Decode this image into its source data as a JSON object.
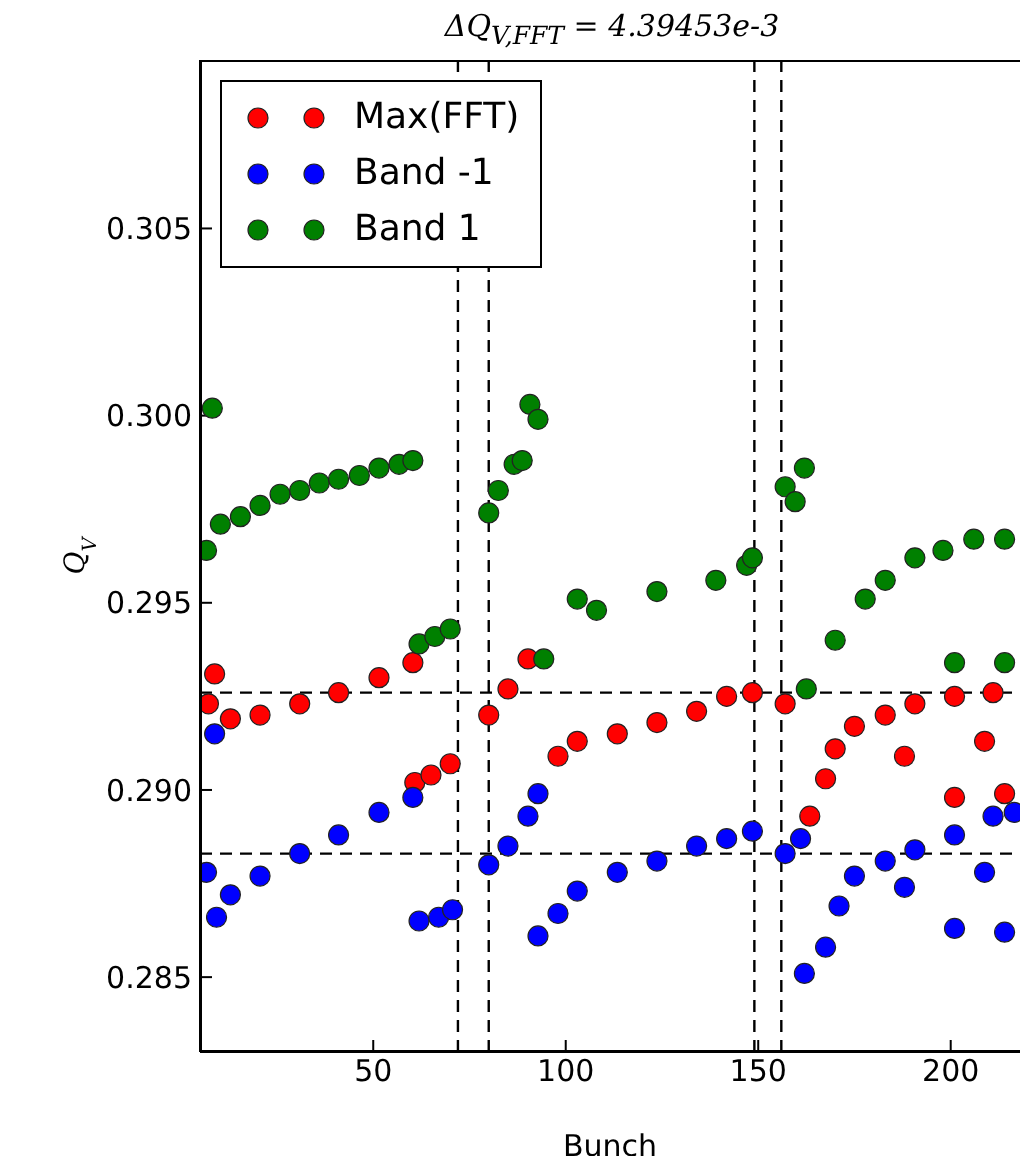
{
  "chart_data": {
    "type": "scatter",
    "title": "ΔQ$_{V,FFT}$ = 4.39453e-3",
    "xlabel": "Bunch",
    "ylabel": "Q$_{V}$",
    "xlim": [
      5,
      218
    ],
    "xticks": [
      50,
      100,
      150,
      200
    ],
    "ylim": [
      0.283,
      0.3095
    ],
    "yticks": [
      0.285,
      {
        "value": 0.29,
        "label": "0.290"
      },
      0.295,
      {
        "value": 0.3,
        "label": "0.300"
      },
      0.305
    ],
    "legend": "top left",
    "marker": "circle",
    "ref_lines": [
      {
        "axis": "x",
        "value": 72,
        "line_style": "dashed"
      },
      {
        "axis": "x",
        "value": 80,
        "line_style": "dashed"
      },
      {
        "axis": "x",
        "value": 149,
        "line_style": "dashed"
      },
      {
        "axis": "x",
        "value": 156,
        "line_style": "dashed"
      },
      {
        "axis": "y",
        "value": 0.2926,
        "line_style": "dashed"
      },
      {
        "axis": "y",
        "value": 0.2883,
        "line_style": "dashed"
      }
    ],
    "series": [
      {
        "name": "Max(FFT)",
        "color": "#ff0000",
        "x": [
          7.2,
          8.8,
          12.9,
          20.6,
          30.9,
          41,
          51.5,
          60.3,
          60.8,
          65,
          70,
          80,
          85,
          90.2,
          91.8,
          98,
          103,
          113.4,
          123.7,
          134,
          141.8,
          148.5,
          157,
          162,
          163.4,
          167.5,
          170,
          175,
          183,
          190.7,
          201,
          211,
          188,
          208.8,
          201,
          214
        ],
        "values": [
          0.2923,
          0.2931,
          0.2919,
          0.292,
          0.2923,
          0.2926,
          0.293,
          0.2934,
          0.2902,
          0.2904,
          0.2907,
          0.292,
          0.2927,
          0.2935,
          null,
          0.2909,
          0.2913,
          0.2915,
          0.2918,
          0.2921,
          0.2925,
          0.2926,
          0.2923,
          null,
          0.2893,
          0.2903,
          0.2911,
          0.2917,
          0.292,
          0.2923,
          0.2925,
          0.2926,
          0.2909,
          0.2913,
          0.2898,
          0.2899
        ]
      },
      {
        "name": "Band -1",
        "color": "#0000ff",
        "x": [
          6.7,
          8.8,
          9.3,
          12.9,
          20.6,
          30.9,
          41,
          51.5,
          60.3,
          61.9,
          67,
          70.6,
          80,
          85,
          90.2,
          92.8,
          92.8,
          98,
          103,
          113.4,
          123.7,
          134,
          141.8,
          148.5,
          157,
          161,
          162,
          167.5,
          171,
          175,
          183,
          190.7,
          201,
          211,
          216.5,
          188,
          208.8,
          201,
          214
        ],
        "values": [
          0.2878,
          0.2915,
          0.2866,
          0.2872,
          0.2877,
          0.2883,
          0.2888,
          0.2894,
          0.2898,
          0.2865,
          0.2866,
          0.2868,
          0.288,
          0.2885,
          0.2893,
          0.2899,
          0.2861,
          0.2867,
          0.2873,
          0.2878,
          0.2881,
          0.2885,
          0.2887,
          0.2889,
          0.2883,
          0.2887,
          0.2851,
          0.2858,
          0.2869,
          0.2877,
          0.2881,
          0.2884,
          0.2888,
          0.2893,
          0.2894,
          0.2874,
          0.2878,
          0.2863,
          0.2862
        ]
      },
      {
        "name": "Band 1",
        "color": "#008000",
        "x": [
          6.7,
          8.2,
          10.3,
          15.5,
          20.6,
          25.8,
          30.9,
          36,
          41,
          46.4,
          51.5,
          56.7,
          60.3,
          61.9,
          66,
          70,
          80,
          82.5,
          86.6,
          88.7,
          90.7,
          92.8,
          94.3,
          103,
          108,
          123.7,
          139,
          147,
          148.5,
          157,
          159.6,
          162,
          162.5,
          170,
          177.8,
          183,
          190.7,
          198,
          206,
          214,
          201,
          214
        ],
        "values": [
          0.2964,
          0.3002,
          0.2971,
          0.2973,
          0.2976,
          0.2979,
          0.298,
          0.2982,
          0.2983,
          0.2984,
          0.2986,
          0.2987,
          0.2988,
          0.2939,
          0.2941,
          0.2943,
          0.2974,
          0.298,
          0.2987,
          0.2988,
          0.3003,
          0.2999,
          0.2935,
          0.2951,
          0.2948,
          0.2953,
          0.2956,
          0.296,
          0.2962,
          0.2981,
          0.2977,
          0.2986,
          0.2927,
          0.294,
          0.2951,
          0.2956,
          0.2962,
          0.2964,
          0.2967,
          0.2967,
          0.2934,
          0.2934
        ]
      }
    ]
  }
}
